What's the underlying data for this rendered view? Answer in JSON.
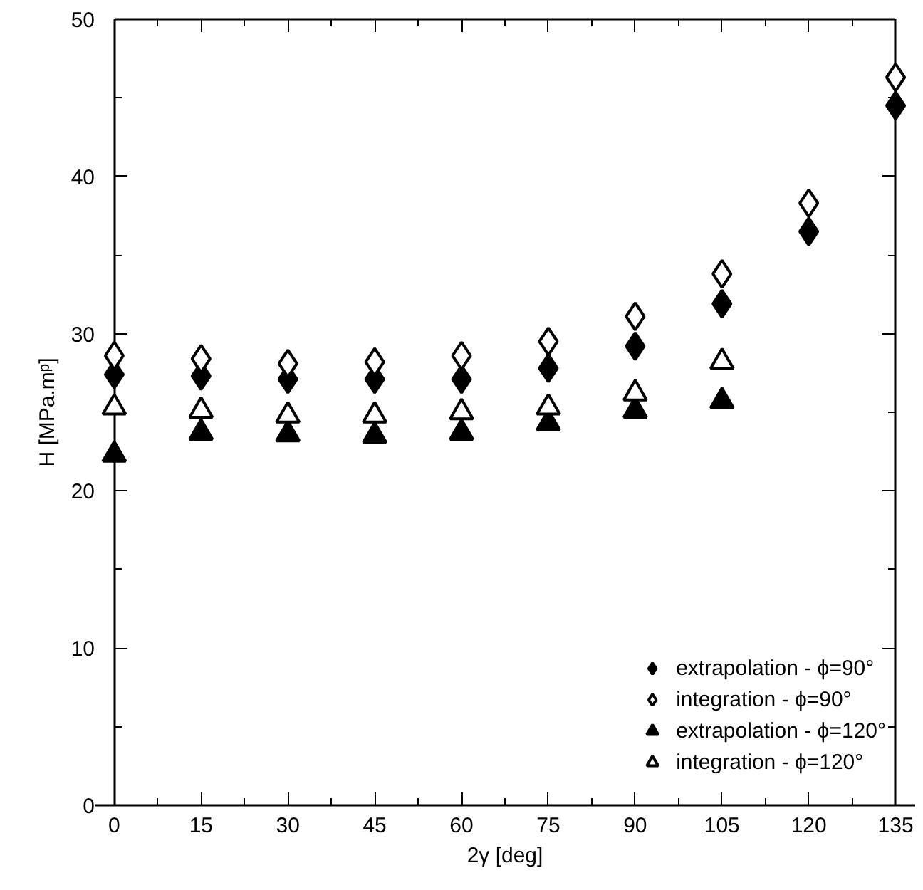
{
  "chart_data": {
    "type": "scatter",
    "xlabel": "2γ [deg]",
    "ylabel": "H [MPa.mᵖ]",
    "x": [
      0,
      15,
      30,
      45,
      60,
      75,
      90,
      105,
      120,
      135
    ],
    "xlim": [
      0,
      135
    ],
    "xticks": [
      0,
      15,
      30,
      45,
      60,
      75,
      90,
      105,
      120,
      135
    ],
    "ylim": [
      0,
      50
    ],
    "yticks": [
      0,
      10,
      20,
      30,
      40,
      50
    ],
    "grid": false,
    "legend": "bottom right",
    "series": [
      {
        "name": "extrapolation - ϕ=90°",
        "color": "#000000",
        "marker": "diamond",
        "values": [
          27.4,
          27.3,
          27.1,
          27.1,
          27.1,
          27.8,
          29.2,
          31.9,
          36.5,
          44.5
        ]
      },
      {
        "name": "integration - ϕ=90°",
        "color": "#000000",
        "marker": "diamond",
        "values": [
          28.6,
          28.4,
          28.1,
          28.2,
          28.6,
          29.5,
          31.1,
          33.8,
          38.3,
          46.3
        ]
      },
      {
        "name": "extrapolation - ϕ=120°",
        "color": "#000000",
        "marker": "triangle",
        "values": [
          22.3,
          23.7,
          23.6,
          23.5,
          23.7,
          24.3,
          25.1,
          25.7,
          null,
          null
        ]
      },
      {
        "name": "integration - ϕ=120°",
        "color": "#000000",
        "marker": "triangle",
        "values": [
          25.3,
          25.1,
          24.8,
          24.8,
          25.0,
          25.3,
          26.2,
          28.2,
          null,
          null
        ]
      }
    ]
  }
}
